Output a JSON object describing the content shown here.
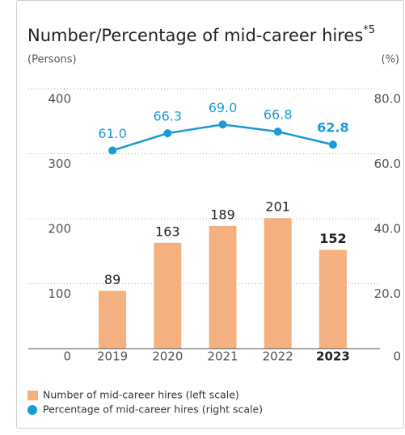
{
  "chart_data": {
    "type": "bar_line",
    "title": "Number/Percentage of mid-career hires",
    "title_note": "*5",
    "y_label": "(Persons)",
    "y2_label": "(%)",
    "categories": [
      "2019",
      "2020",
      "2021",
      "2022",
      "2023"
    ],
    "bold_category": "2023",
    "series": [
      {
        "name": "Number of mid-career hires (left scale)",
        "type": "bar",
        "color": "#f4b07f",
        "values": [
          89,
          163,
          189,
          201,
          152
        ]
      },
      {
        "name": "Percentage of mid-career hires (right scale)",
        "type": "line",
        "axis": "y2",
        "color": "#1a9ad6",
        "values": [
          61.0,
          66.3,
          69.0,
          66.8,
          62.8
        ],
        "value_labels": [
          "61.0",
          "66.3",
          "69.0",
          "66.8",
          "62.8"
        ]
      }
    ],
    "ylim": [
      0,
      400
    ],
    "yticks": [
      0,
      100,
      200,
      300,
      400
    ],
    "y2lim": [
      0,
      80
    ],
    "y2ticks": [
      0,
      {
        "value": 20,
        "label": "20.0"
      },
      {
        "value": 40,
        "label": "40.0"
      },
      {
        "value": 60,
        "label": "60.0"
      },
      {
        "value": 80,
        "label": "80.0"
      }
    ],
    "grid": true
  }
}
